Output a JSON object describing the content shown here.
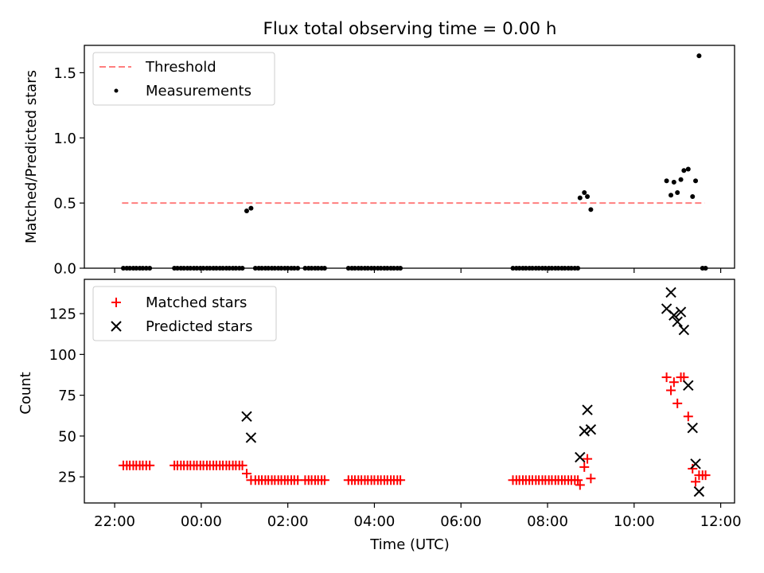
{
  "figure": {
    "title": "Flux total observing time = 0.00 h"
  },
  "colors": {
    "threshold": "#ff7f7f",
    "measurement": "#000000",
    "matched": "#ff0000",
    "predicted": "#000000",
    "axes": "#000000"
  },
  "chart_data": [
    {
      "type": "scatter",
      "title": "Flux total observing time = 0.00 h",
      "xlabel": "",
      "ylabel": "Matched/Predicted stars",
      "xlim_hours": [
        -2.7,
        12.32
      ],
      "ylim": [
        0,
        1.71
      ],
      "yticks": [
        0.0,
        0.5,
        1.0,
        1.5
      ],
      "ytick_labels": [
        "0.0",
        "0.5",
        "1.0",
        "1.5"
      ],
      "xticks_hours": [
        -2,
        0,
        2,
        4,
        6,
        8,
        10,
        12
      ],
      "legend": {
        "location": "upper left",
        "entries": [
          "Threshold",
          "Measurements"
        ]
      },
      "threshold": {
        "name": "Threshold",
        "y": 0.5,
        "x_start": -1.83,
        "x_end": 11.63,
        "style": "dashed"
      },
      "series": [
        {
          "name": "Measurements",
          "marker": "dot",
          "x": [
            -1.8,
            -1.72,
            -1.65,
            -1.57,
            -1.5,
            -1.42,
            -1.35,
            -1.27,
            -1.19,
            -0.62,
            -0.55,
            -0.47,
            -0.4,
            -0.32,
            -0.25,
            -0.17,
            -0.1,
            -0.02,
            0.05,
            0.13,
            0.2,
            0.28,
            0.35,
            0.43,
            0.5,
            0.58,
            0.65,
            0.73,
            0.8,
            0.88,
            0.95,
            1.05,
            1.15,
            1.25,
            1.33,
            1.4,
            1.48,
            1.55,
            1.63,
            1.7,
            1.78,
            1.85,
            1.93,
            2.0,
            2.08,
            2.15,
            2.23,
            2.4,
            2.48,
            2.55,
            2.63,
            2.7,
            2.78,
            2.85,
            3.4,
            3.48,
            3.55,
            3.63,
            3.7,
            3.78,
            3.85,
            3.93,
            4.0,
            4.08,
            4.15,
            4.23,
            4.3,
            4.38,
            4.45,
            4.53,
            4.6,
            7.2,
            7.28,
            7.35,
            7.43,
            7.5,
            7.58,
            7.65,
            7.73,
            7.8,
            7.88,
            7.95,
            8.03,
            8.1,
            8.18,
            8.25,
            8.33,
            8.4,
            8.48,
            8.55,
            8.63,
            8.7,
            8.75,
            8.85,
            8.92,
            9.0,
            10.75,
            10.85,
            10.92,
            11.0,
            11.08,
            11.15,
            11.25,
            11.35,
            11.42,
            11.5,
            11.58,
            11.65
          ],
          "y": [
            0,
            0,
            0,
            0,
            0,
            0,
            0,
            0,
            0,
            0,
            0,
            0,
            0,
            0,
            0,
            0,
            0,
            0,
            0,
            0,
            0,
            0,
            0,
            0,
            0,
            0,
            0,
            0,
            0,
            0,
            0,
            0.44,
            0.46,
            0,
            0,
            0,
            0,
            0,
            0,
            0,
            0,
            0,
            0,
            0,
            0,
            0,
            0,
            0,
            0,
            0,
            0,
            0,
            0,
            0,
            0,
            0,
            0,
            0,
            0,
            0,
            0,
            0,
            0,
            0,
            0,
            0,
            0,
            0,
            0,
            0,
            0,
            0,
            0,
            0,
            0,
            0,
            0,
            0,
            0,
            0,
            0,
            0,
            0,
            0,
            0,
            0,
            0,
            0,
            0,
            0,
            0,
            0,
            0.54,
            0.58,
            0.55,
            0.45,
            0.67,
            0.56,
            0.66,
            0.58,
            0.68,
            0.75,
            0.76,
            0.55,
            0.67,
            1.63,
            0,
            0
          ]
        }
      ]
    },
    {
      "type": "scatter",
      "xlabel": "Time (UTC)",
      "ylabel": "Count",
      "xlim_hours": [
        -2.7,
        12.32
      ],
      "ylim": [
        9,
        146
      ],
      "yticks": [
        25,
        50,
        75,
        100,
        125
      ],
      "ytick_labels": [
        "25",
        "50",
        "75",
        "100",
        "125"
      ],
      "xticks_hours": [
        -2,
        0,
        2,
        4,
        6,
        8,
        10,
        12
      ],
      "xtick_labels": [
        "22:00",
        "00:00",
        "02:00",
        "04:00",
        "06:00",
        "08:00",
        "10:00",
        "12:00"
      ],
      "legend": {
        "location": "upper left",
        "entries": [
          "Matched stars",
          "Predicted stars"
        ]
      },
      "series": [
        {
          "name": "Matched stars",
          "marker": "plus",
          "x": [
            -1.8,
            -1.72,
            -1.65,
            -1.57,
            -1.5,
            -1.42,
            -1.35,
            -1.27,
            -1.19,
            -0.62,
            -0.55,
            -0.47,
            -0.4,
            -0.32,
            -0.25,
            -0.17,
            -0.1,
            -0.02,
            0.05,
            0.13,
            0.2,
            0.28,
            0.35,
            0.43,
            0.5,
            0.58,
            0.65,
            0.73,
            0.8,
            0.88,
            0.95,
            1.05,
            1.15,
            1.25,
            1.33,
            1.4,
            1.48,
            1.55,
            1.63,
            1.7,
            1.78,
            1.85,
            1.93,
            2.0,
            2.08,
            2.15,
            2.23,
            2.4,
            2.48,
            2.55,
            2.63,
            2.7,
            2.78,
            2.85,
            3.4,
            3.48,
            3.55,
            3.63,
            3.7,
            3.78,
            3.85,
            3.93,
            4.0,
            4.08,
            4.15,
            4.23,
            4.3,
            4.38,
            4.45,
            4.53,
            4.6,
            7.2,
            7.28,
            7.35,
            7.43,
            7.5,
            7.58,
            7.65,
            7.73,
            7.8,
            7.88,
            7.95,
            8.03,
            8.1,
            8.18,
            8.25,
            8.33,
            8.4,
            8.48,
            8.55,
            8.63,
            8.7,
            8.75,
            8.85,
            8.92,
            9.0,
            10.75,
            10.85,
            10.92,
            11.0,
            11.08,
            11.15,
            11.25,
            11.35,
            11.42,
            11.5,
            11.58,
            11.65
          ],
          "y": [
            32,
            32,
            32,
            32,
            32,
            32,
            32,
            32,
            32,
            32,
            32,
            32,
            32,
            32,
            32,
            32,
            32,
            32,
            32,
            32,
            32,
            32,
            32,
            32,
            32,
            32,
            32,
            32,
            32,
            32,
            32,
            27,
            23,
            23,
            23,
            23,
            23,
            23,
            23,
            23,
            23,
            23,
            23,
            23,
            23,
            23,
            23,
            23,
            23,
            23,
            23,
            23,
            23,
            23,
            23,
            23,
            23,
            23,
            23,
            23,
            23,
            23,
            23,
            23,
            23,
            23,
            23,
            23,
            23,
            23,
            23,
            23,
            23,
            23,
            23,
            23,
            23,
            23,
            23,
            23,
            23,
            23,
            23,
            23,
            23,
            23,
            23,
            23,
            23,
            23,
            23,
            23,
            20,
            31,
            36,
            24,
            86,
            78,
            83,
            70,
            86,
            86,
            62,
            30,
            22,
            26,
            26,
            26
          ]
        },
        {
          "name": "Predicted stars",
          "marker": "x",
          "x": [
            1.05,
            1.15,
            8.75,
            8.85,
            8.92,
            9.0,
            10.75,
            10.85,
            10.92,
            11.0,
            11.08,
            11.15,
            11.25,
            11.35,
            11.42,
            11.5
          ],
          "y": [
            62,
            49,
            37,
            53,
            66,
            54,
            128,
            138,
            124,
            120,
            126,
            115,
            81,
            55,
            33,
            16
          ]
        }
      ]
    }
  ]
}
